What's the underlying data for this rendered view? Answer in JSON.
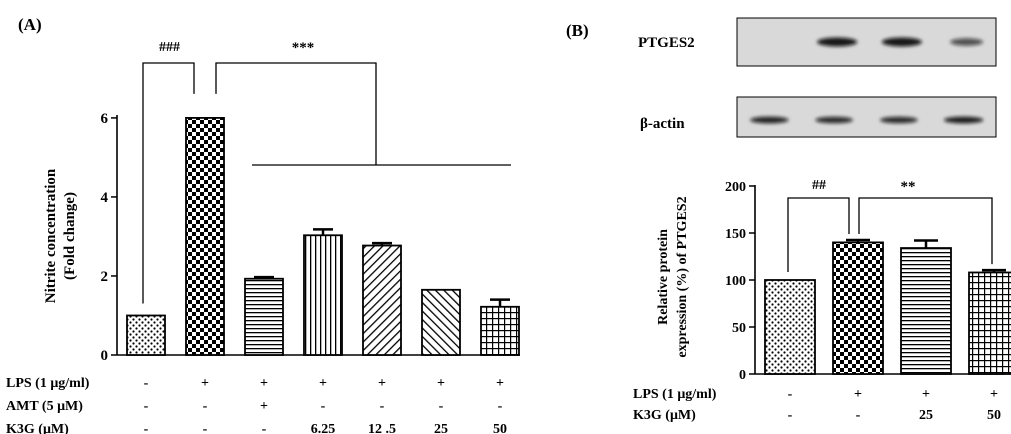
{
  "colors": {
    "ink": "#000000",
    "background": "#ffffff",
    "blot_bg": "#d9d9d9",
    "blot_band": "#111111"
  },
  "chart_data": [
    {
      "panel_label": "(A)",
      "type": "bar",
      "ylabel": "Nitrite concentration (Fold change)",
      "ylabel_lines": [
        "Nitrite concentration",
        "(Fold change)"
      ],
      "ylim": [
        0,
        6.2
      ],
      "yticks": [
        0,
        2,
        4,
        6
      ],
      "grid": false,
      "values": [
        1.0,
        6.0,
        1.93,
        3.03,
        2.77,
        1.65,
        1.22
      ],
      "errors": [
        0,
        0,
        0.04,
        0.15,
        0.06,
        0,
        0.18
      ],
      "patterns": [
        "dots",
        "checker",
        "hlines",
        "vlines",
        "diag_right",
        "diag_left",
        "grid"
      ],
      "conditions": [
        {
          "label": "LPS (1 μg/ml)",
          "values": [
            "-",
            "+",
            "+",
            "+",
            "+",
            "+",
            "+"
          ]
        },
        {
          "label": "AMT (5 μM)",
          "values": [
            "-",
            "-",
            "+",
            "-",
            "-",
            "-",
            "-"
          ]
        },
        {
          "label": "K3G (μM)",
          "values": [
            "-",
            "-",
            "-",
            "6.25",
            "12 .5",
            "25",
            "50"
          ]
        }
      ],
      "annotations": [
        {
          "text": "###",
          "from_bar": 0,
          "to_bar": 1
        },
        {
          "text": "***",
          "from_bar": 1,
          "to_bars": [
            2,
            6
          ]
        }
      ]
    },
    {
      "panel_label": "(B)",
      "type": "bar",
      "ylabel": "Relative protein expression (%) of PTGES2",
      "ylabel_lines": [
        "Relative protein",
        "expression (%) of  PTGES2"
      ],
      "ylim": [
        0,
        200
      ],
      "yticks": [
        0,
        50,
        100,
        150,
        200
      ],
      "grid": false,
      "values": [
        100,
        140,
        134,
        108
      ],
      "errors": [
        0,
        2.5,
        8,
        2.5
      ],
      "patterns": [
        "dots",
        "checker",
        "hlines",
        "grid"
      ],
      "conditions": [
        {
          "label": "LPS (1 μg/ml)",
          "values": [
            "-",
            "+",
            "+",
            "+"
          ]
        },
        {
          "label": "K3G (μM)",
          "values": [
            "-",
            "-",
            "25",
            "50"
          ]
        }
      ],
      "annotations": [
        {
          "text": "##",
          "from_bar": 0,
          "to_bar": 1
        },
        {
          "text": "**",
          "from_bar": 1,
          "to_bar": 3
        }
      ],
      "blots": [
        {
          "label": "PTGES2",
          "band_intensity": [
            0,
            1.0,
            1.0,
            0.55
          ]
        },
        {
          "label": "β-actin",
          "band_intensity": [
            0.9,
            0.85,
            0.85,
            0.95
          ]
        }
      ]
    }
  ]
}
